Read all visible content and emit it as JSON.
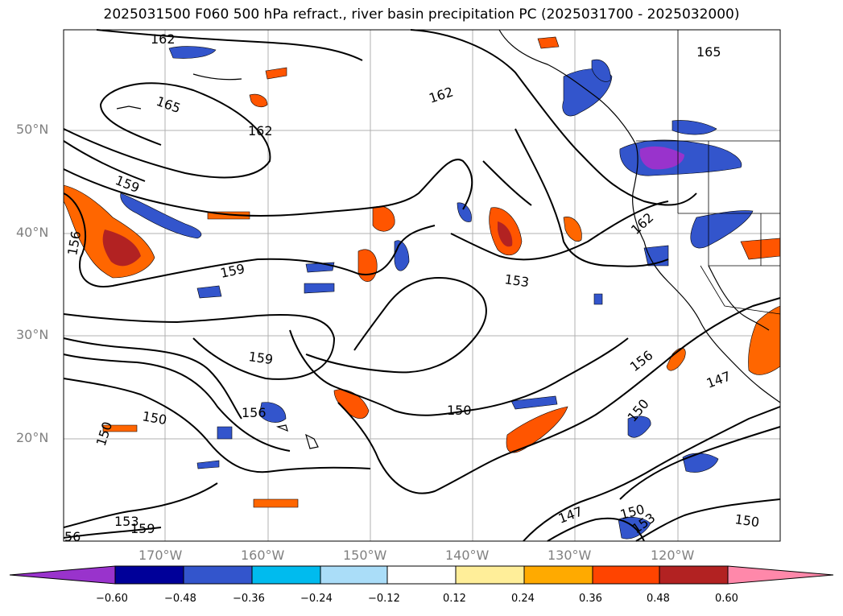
{
  "title": "2025031500 F060 500 hPa refract., river basin precipitation PC (2025031700 - 2025032000)",
  "lat_labels": [
    "50°N",
    "40°N",
    "30°N",
    "20°N"
  ],
  "lon_labels": [
    "170°W",
    "160°W",
    "150°W",
    "140°W",
    "130°W",
    "120°W"
  ],
  "contour_labels": [
    "162",
    "165",
    "162",
    "162",
    "165",
    "159",
    "156",
    "159",
    "153",
    "162",
    "159",
    "156",
    "156",
    "150",
    "150",
    "150",
    "147",
    "150",
    "153",
    "159",
    "56",
    "147",
    "150",
    "153",
    "150"
  ],
  "colorbar": {
    "colors": [
      "#9933cc",
      "#000099",
      "#3355cc",
      "#00bbee",
      "#aaddf8",
      "#ffffff",
      "#ffee99",
      "#ffaa00",
      "#ff4400",
      "#b22222",
      "#ff88aa"
    ],
    "ticks": [
      "−0.60",
      "−0.48",
      "−0.36",
      "−0.24",
      "−0.12",
      "0.12",
      "0.24",
      "0.36",
      "0.48",
      "0.60"
    ]
  }
}
